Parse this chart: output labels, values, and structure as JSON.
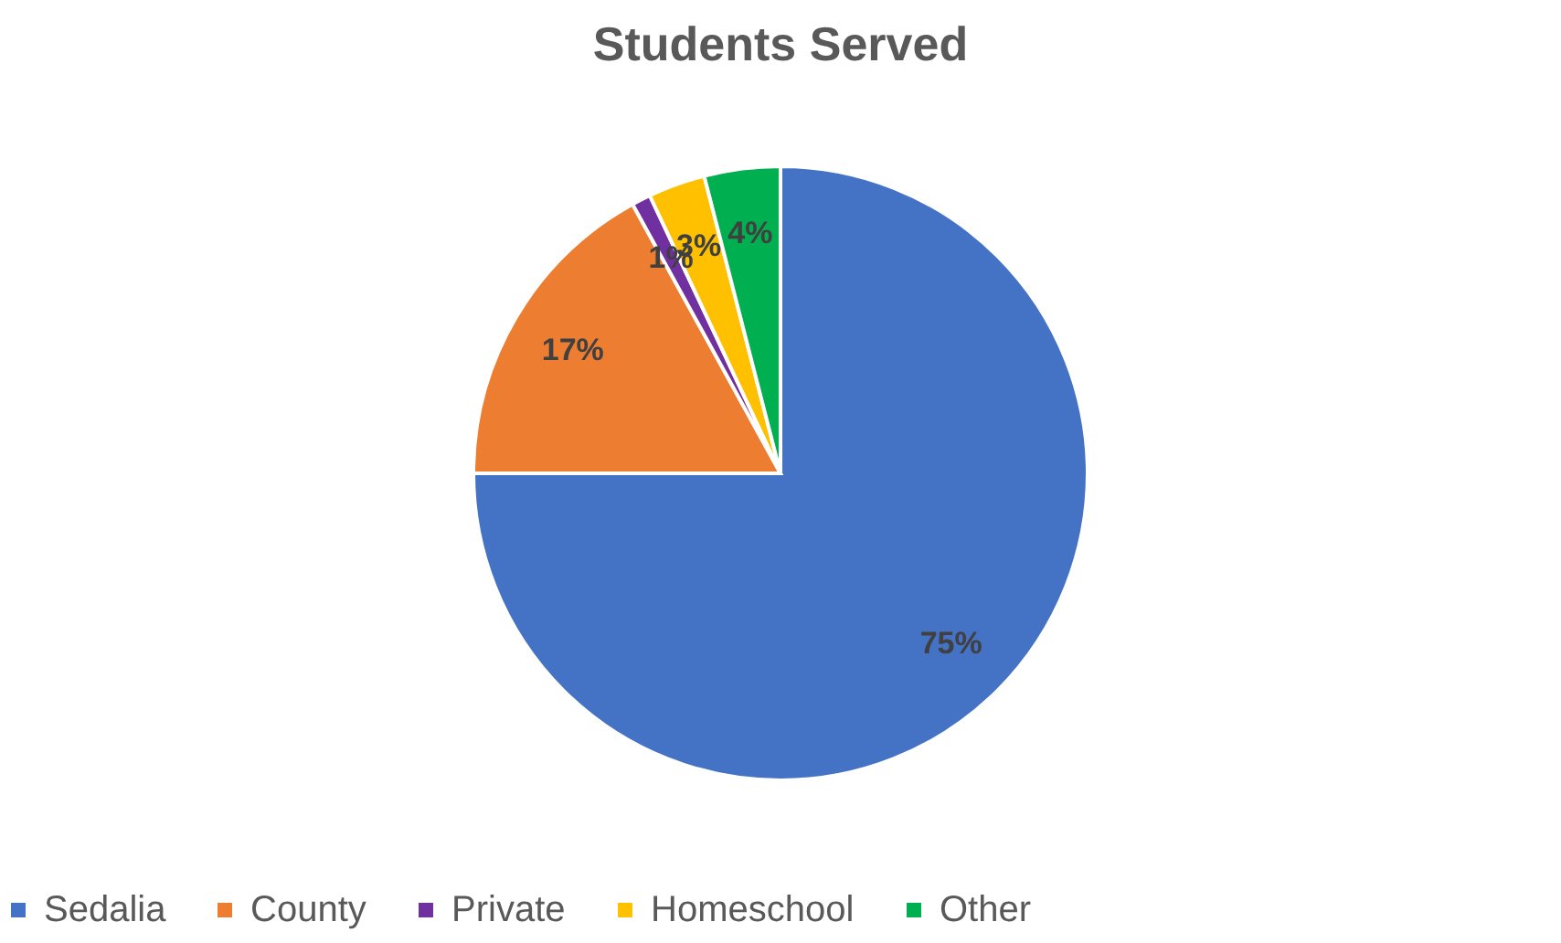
{
  "chart_data": {
    "type": "pie",
    "title": "Students Served",
    "categories": [
      "Sedalia",
      "County",
      "Private",
      "Homeschool",
      "Other"
    ],
    "values": [
      75,
      17,
      1,
      3,
      4
    ],
    "colors": [
      "#4472c4",
      "#ed7d31",
      "#7030a0",
      "#ffc000",
      "#00b050"
    ],
    "value_labels": [
      "75%",
      "17%",
      "1%",
      "3%",
      "4%"
    ],
    "legend": "bottom"
  }
}
